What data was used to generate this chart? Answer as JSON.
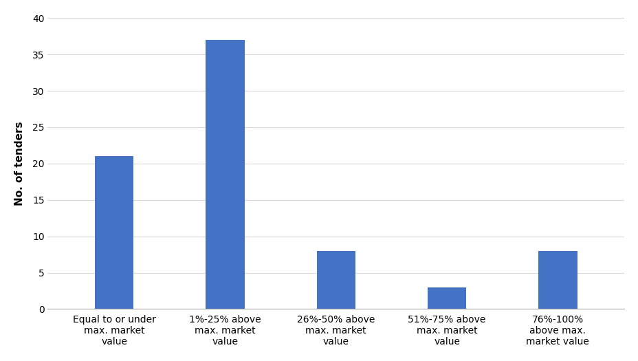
{
  "categories": [
    "Equal to or under\nmax. market\nvalue",
    "1%-25% above\nmax. market\nvalue",
    "26%-50% above\nmax. market\nvalue",
    "51%-75% above\nmax. market\nvalue",
    "76%-100%\nabove max.\nmarket value"
  ],
  "values": [
    21,
    37,
    8,
    3,
    8
  ],
  "bar_color": "#4472C4",
  "ylabel": "No. of tenders",
  "ylim": [
    0,
    40
  ],
  "yticks": [
    0,
    5,
    10,
    15,
    20,
    25,
    30,
    35,
    40
  ],
  "bar_width": 0.35,
  "background_color": "#ffffff",
  "grid_color": "#d9d9d9",
  "tick_label_fontsize": 10,
  "ylabel_fontsize": 11,
  "figsize": [
    9.29,
    5.25
  ],
  "dpi": 100
}
